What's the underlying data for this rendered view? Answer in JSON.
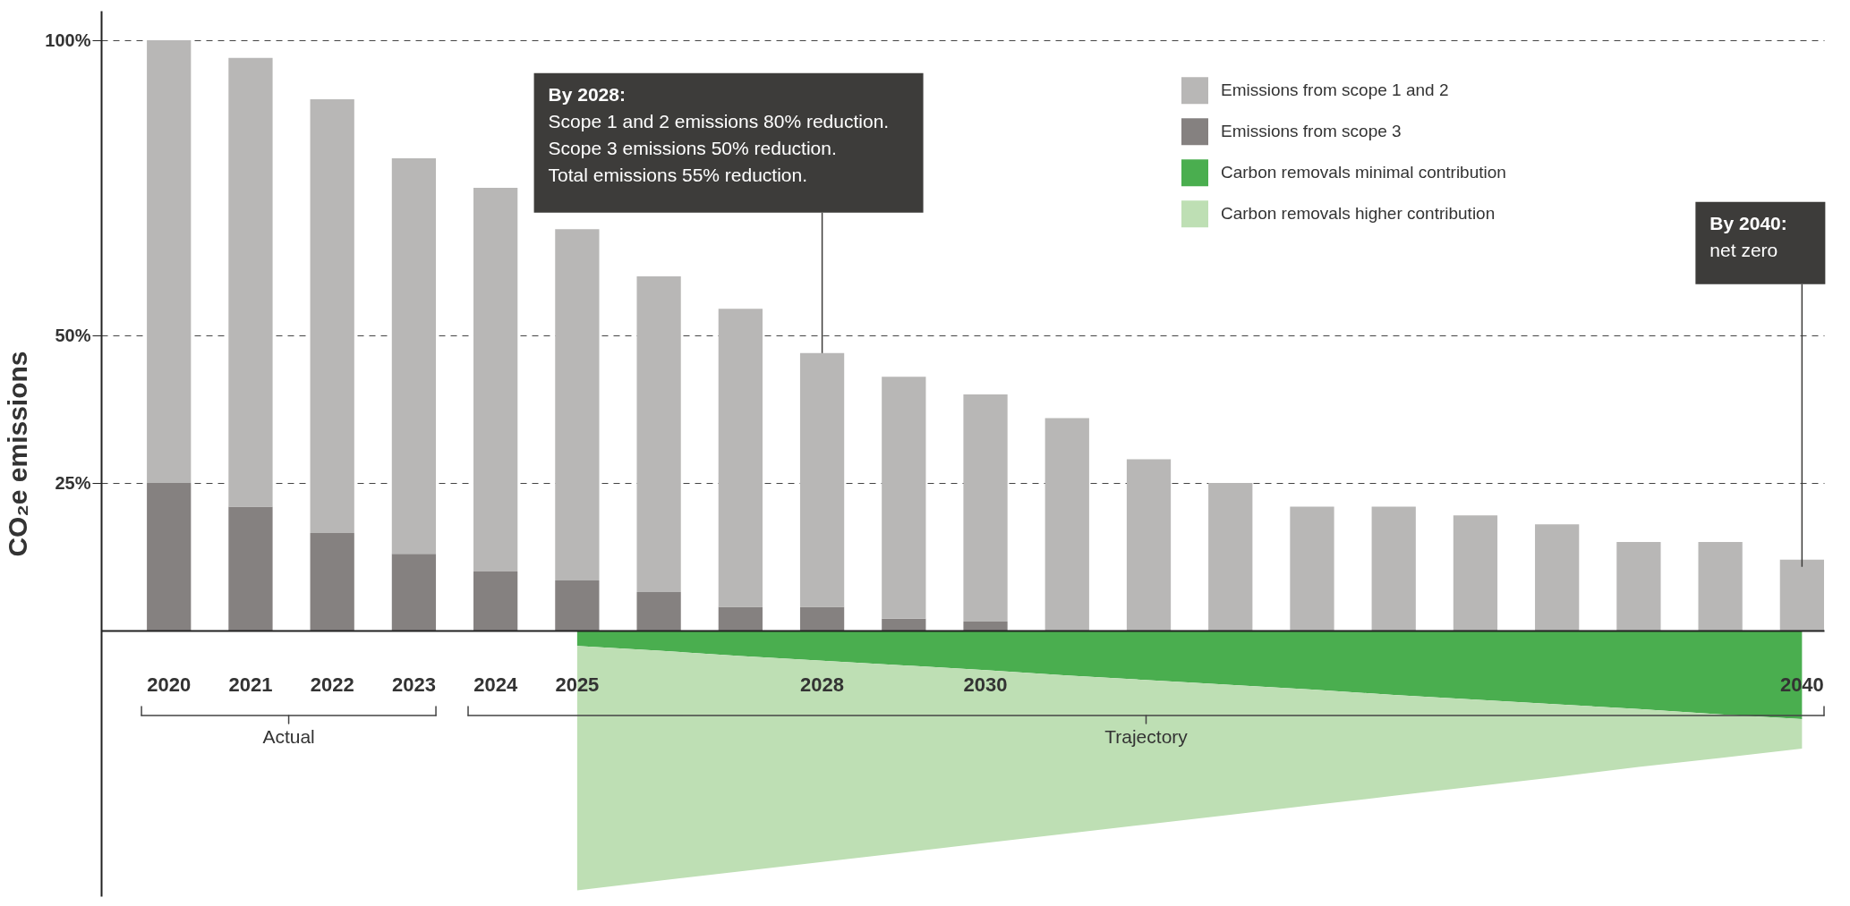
{
  "chart_data": {
    "type": "bar",
    "ylabel": "CO₂e emissions",
    "categories": [
      "2020",
      "2021",
      "2022",
      "2023",
      "2024",
      "2025",
      null,
      null,
      "2028",
      null,
      "2030",
      null,
      null,
      null,
      null,
      null,
      null,
      null,
      null,
      null,
      "2040"
    ],
    "series": [
      {
        "name": "Emissions from scope 3",
        "color": "#858180",
        "values": [
          25,
          21,
          16.5,
          13,
          10,
          8.5,
          6.5,
          4,
          4,
          2,
          1.5,
          0,
          0,
          0,
          0,
          0,
          0,
          0,
          0,
          0,
          0
        ]
      },
      {
        "name": "Emissions from scope 1 and 2",
        "color": "#b8b7b6",
        "values": [
          75,
          76,
          73.5,
          67,
          65,
          59.5,
          53.5,
          50.5,
          43,
          41,
          38.5,
          36,
          29,
          25,
          21,
          21,
          19.5,
          18,
          15,
          15,
          12
        ]
      },
      {
        "name": "Carbon removals minimal contribution",
        "color": "#4aae4f",
        "type": "area",
        "values": [
          null,
          null,
          null,
          null,
          null,
          -2.6,
          -3.4,
          -4.3,
          -5.1,
          -5.9,
          -6.7,
          -7.6,
          -8.4,
          -9.2,
          -10,
          -10.9,
          -11.7,
          -12.5,
          -13.3,
          -14.2,
          -15
        ]
      },
      {
        "name": "Carbon removals higher contribution",
        "color": "#bedfb4",
        "type": "area",
        "values": [
          null,
          null,
          null,
          null,
          null,
          -41.4,
          -39,
          -36.5,
          -34.1,
          -31.7,
          -29.3,
          -26.8,
          -24.4,
          -22,
          -19.6,
          -17.1,
          -14.7,
          -12.3,
          -9.8,
          -7.4,
          -5
        ]
      }
    ],
    "stacked": true,
    "ylim": [
      -45,
      105
    ],
    "yticks": [
      {
        "value": 25,
        "label": "25%"
      },
      {
        "value": 50,
        "label": "50%"
      },
      {
        "value": 100,
        "label": "100%"
      }
    ],
    "grid": "y",
    "legend": "top right",
    "annotations": [
      "By 2028:\nScope 1 and 2 emissions 80% reduction.\nScope 3 emissions 50% reduction.\nTotal emissions 55% reduction.",
      "By 2040:\nnet zero",
      "Actual",
      "Trajectory"
    ]
  }
}
